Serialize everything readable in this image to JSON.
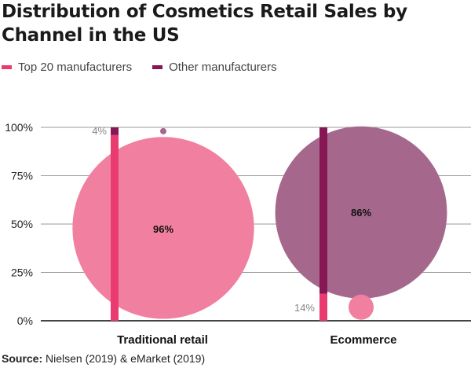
{
  "chart_data": {
    "type": "bubble",
    "title": "Distribution of Cosmetics Retail Sales by Channel in the US",
    "categories": [
      "Traditional retail",
      "Ecommerce"
    ],
    "series": [
      {
        "name": "Top 20 manufacturers",
        "values": [
          96,
          14
        ],
        "color": "#ea3b70"
      },
      {
        "name": "Other manufacturers",
        "values": [
          4,
          86
        ],
        "color": "#861755"
      }
    ],
    "bubble_colors": {
      "Top 20 manufacturers": "#f07fa0",
      "Other manufacturers": "#a5688c"
    },
    "data_labels": {
      "traditional_top20": "96%",
      "traditional_other": "4%",
      "ecommerce_top20": "14%",
      "ecommerce_other": "86%"
    },
    "y_ticks": [
      "0%",
      "25%",
      "50%",
      "75%",
      "100%"
    ],
    "ylim": [
      0,
      100
    ],
    "grid": true,
    "legend_position": "top-left",
    "source_label": "Source:",
    "source_text": "Nielsen (2019) & eMarket (2019)"
  }
}
